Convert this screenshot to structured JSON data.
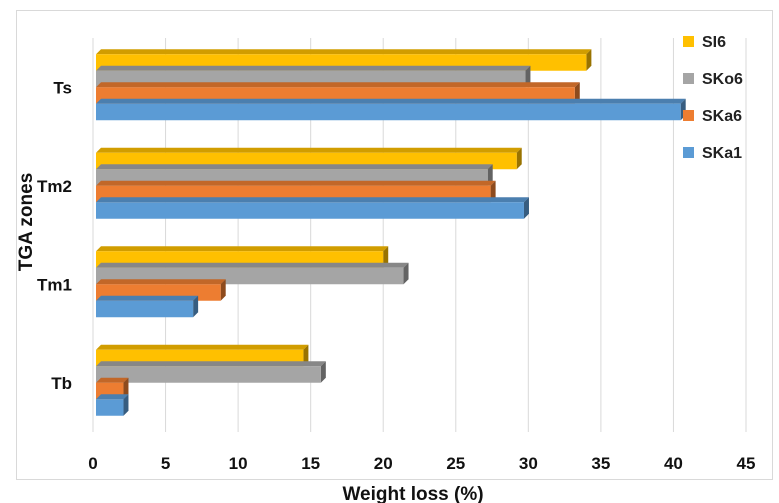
{
  "chart_data": {
    "type": "bar",
    "orientation": "horizontal",
    "style": "3d",
    "title": "",
    "xlabel": "Weight loss (%)",
    "ylabel": "TGA zones",
    "xlim": [
      0,
      45
    ],
    "xticks": [
      "0",
      "5",
      "10",
      "15",
      "20",
      "25",
      "30",
      "35",
      "40",
      "45"
    ],
    "grid": true,
    "legend_position": "right",
    "categories": [
      "Ts",
      "Tm2",
      "Tm1",
      "Tb"
    ],
    "series": [
      {
        "name": "SI6",
        "color": "#FFC000",
        "values": [
          34.0,
          29.2,
          20.0,
          14.5
        ]
      },
      {
        "name": "SKo6",
        "color": "#A5A5A5",
        "values": [
          29.8,
          27.2,
          21.4,
          15.7
        ]
      },
      {
        "name": "SKa6",
        "color": "#ED7D31",
        "values": [
          33.2,
          27.4,
          8.8,
          2.1
        ]
      },
      {
        "name": "SKa1",
        "color": "#5B9BD5",
        "values": [
          40.5,
          29.7,
          6.9,
          2.1
        ]
      }
    ]
  }
}
